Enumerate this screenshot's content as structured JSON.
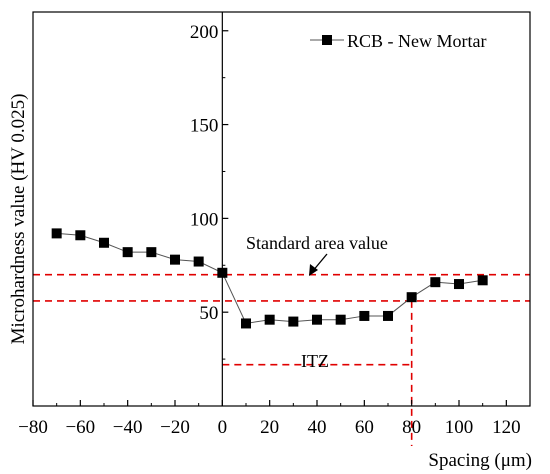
{
  "chart_data": {
    "type": "line",
    "xlabel": "Spacing (μm)",
    "ylabel": "Microhardness value (HV 0.025)",
    "xlim": [
      -80,
      130
    ],
    "ylim": [
      0,
      210
    ],
    "x_ticks": [
      -80,
      -60,
      -40,
      -20,
      0,
      20,
      40,
      60,
      80,
      100,
      120
    ],
    "x_tick_labels": [
      "−80",
      "−60",
      "−40",
      "−20",
      "0",
      "20",
      "40",
      "60",
      "80",
      "100",
      "120"
    ],
    "y_ticks": [
      50,
      100,
      150,
      200
    ],
    "y_tick_labels": [
      "50",
      "100",
      "150",
      "200"
    ],
    "legend": {
      "position": "top-right",
      "label": "RCB - New Mortar"
    },
    "grid": false,
    "series": [
      {
        "name": "RCB - New Mortar",
        "color": "#000000",
        "marker": "square",
        "x": [
          -70,
          -60,
          -50,
          -40,
          -30,
          -20,
          -10,
          0,
          10,
          20,
          30,
          40,
          50,
          60,
          70,
          80,
          90,
          100,
          110
        ],
        "y": [
          92,
          91,
          87,
          82,
          82,
          78,
          77,
          71,
          44,
          46,
          45,
          46,
          46,
          48,
          48,
          58,
          66,
          65,
          67
        ]
      }
    ],
    "reference_lines": {
      "color": "#e00000",
      "upper_y": 70,
      "lower_y": 56,
      "itz_y": 22,
      "itz_x_end": 80
    },
    "annotations": {
      "standard_area": "Standard area value",
      "itz": "ITZ"
    }
  }
}
